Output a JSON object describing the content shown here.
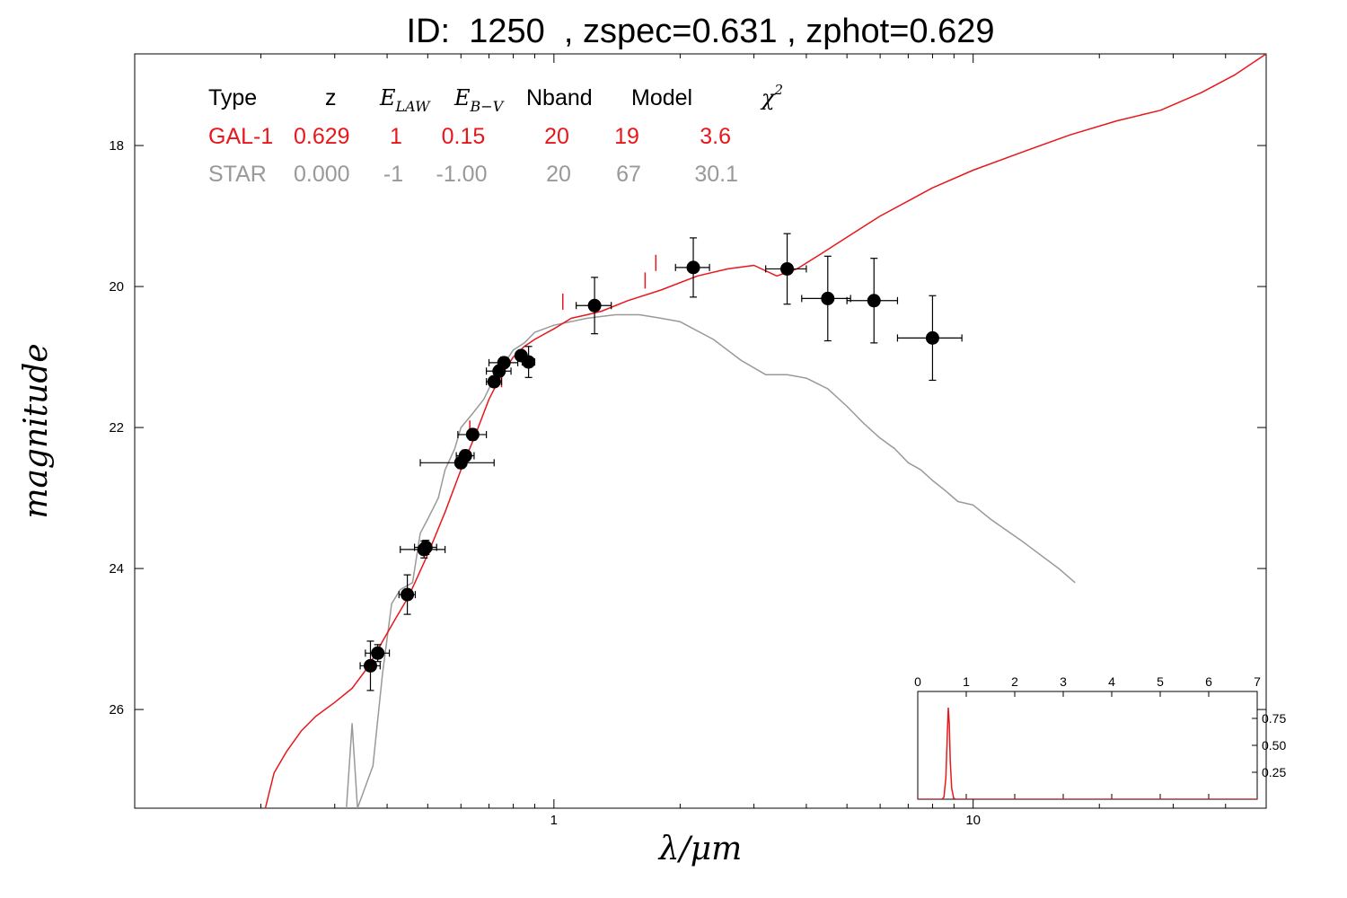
{
  "title": {
    "id_label": "ID:",
    "id_value": "1250",
    "zspec": "zspec=0.631",
    "zphot": "zphot=0.629"
  },
  "fit_table": {
    "headers": {
      "type": "Type",
      "z": "z",
      "elaw_base": "E",
      "elaw_sub": "LAW",
      "ebv_base": "E",
      "ebv_sub": "B−V",
      "nband": "Nband",
      "model": "Model",
      "chi2_base": "χ",
      "chi2_sup": "2"
    },
    "rows": [
      {
        "type": "GAL-1",
        "z": "0.629",
        "elaw": "1",
        "ebv": "0.15",
        "nband": "20",
        "model": "19",
        "chi2": "3.6",
        "color": "#e8171c"
      },
      {
        "type": "STAR",
        "z": "0.000",
        "elaw": "-1",
        "ebv": "-1.00",
        "nband": "20",
        "model": "67",
        "chi2": "30.1",
        "color": "#999999"
      }
    ]
  },
  "chart_data": {
    "type": "scatter",
    "xlabel": "λ/μm",
    "ylabel": "magnitude",
    "x_scale": "log",
    "xlim": [
      0.1,
      50
    ],
    "ylim": [
      27.4,
      16.7
    ],
    "xticks": [
      {
        "value": 1,
        "label": "1"
      },
      {
        "value": 10,
        "label": "10"
      }
    ],
    "yticks": [
      {
        "value": 18,
        "label": "18"
      },
      {
        "value": 20,
        "label": "20"
      },
      {
        "value": 22,
        "label": "22"
      },
      {
        "value": 24,
        "label": "24"
      },
      {
        "value": 26,
        "label": "26"
      }
    ],
    "observations": [
      {
        "x": 0.365,
        "y": 25.38,
        "xerr": 0.02,
        "yerr": 0.35
      },
      {
        "x": 0.38,
        "y": 25.2,
        "xerr": 0.025,
        "yerr": 0.12
      },
      {
        "x": 0.447,
        "y": 24.37,
        "xerr": 0.02,
        "yerr": 0.28
      },
      {
        "x": 0.49,
        "y": 23.73,
        "xerr": 0.06,
        "yerr": 0.12
      },
      {
        "x": 0.495,
        "y": 23.7,
        "xerr": 0.03,
        "yerr": 0.1
      },
      {
        "x": 0.6,
        "y": 22.5,
        "xerr": 0.12,
        "yerr": 0.08
      },
      {
        "x": 0.615,
        "y": 22.4,
        "xerr": 0.03,
        "yerr": 0.08
      },
      {
        "x": 0.64,
        "y": 22.1,
        "xerr": 0.05,
        "yerr": 0.08
      },
      {
        "x": 0.72,
        "y": 21.35,
        "xerr": 0.03,
        "yerr": 0.07
      },
      {
        "x": 0.74,
        "y": 21.2,
        "xerr": 0.05,
        "yerr": 0.08
      },
      {
        "x": 0.76,
        "y": 21.08,
        "xerr": 0.06,
        "yerr": 0.08
      },
      {
        "x": 0.835,
        "y": 20.98,
        "xerr": 0.02,
        "yerr": 0.06
      },
      {
        "x": 0.87,
        "y": 21.07,
        "xerr": 0.03,
        "yerr": 0.22
      },
      {
        "x": 1.25,
        "y": 20.27,
        "xerr": 0.12,
        "yerr": 0.4
      },
      {
        "x": 2.15,
        "y": 19.73,
        "xerr": 0.2,
        "yerr": 0.42
      },
      {
        "x": 3.6,
        "y": 19.75,
        "xerr": 0.4,
        "yerr": 0.5
      },
      {
        "x": 4.5,
        "y": 20.17,
        "xerr": 0.6,
        "yerr": 0.6
      },
      {
        "x": 5.8,
        "y": 20.2,
        "xerr": 0.8,
        "yerr": 0.6
      },
      {
        "x": 8.0,
        "y": 20.73,
        "xerr": 1.4,
        "yerr": 0.6
      }
    ],
    "series": [
      {
        "name": "GAL-1",
        "color": "#e8171c",
        "points": [
          [
            0.205,
            27.4
          ],
          [
            0.215,
            26.9
          ],
          [
            0.23,
            26.6
          ],
          [
            0.25,
            26.3
          ],
          [
            0.27,
            26.1
          ],
          [
            0.3,
            25.9
          ],
          [
            0.33,
            25.7
          ],
          [
            0.36,
            25.4
          ],
          [
            0.38,
            25.15
          ],
          [
            0.42,
            24.7
          ],
          [
            0.45,
            24.4
          ],
          [
            0.5,
            23.8
          ],
          [
            0.55,
            23.2
          ],
          [
            0.6,
            22.6
          ],
          [
            0.65,
            22.1
          ],
          [
            0.7,
            21.6
          ],
          [
            0.75,
            21.25
          ],
          [
            0.8,
            21.0
          ],
          [
            0.85,
            20.85
          ],
          [
            0.9,
            20.75
          ],
          [
            1.0,
            20.6
          ],
          [
            1.1,
            20.45
          ],
          [
            1.2,
            20.4
          ],
          [
            1.3,
            20.35
          ],
          [
            1.5,
            20.2
          ],
          [
            1.8,
            20.05
          ],
          [
            2.2,
            19.85
          ],
          [
            2.6,
            19.75
          ],
          [
            3.0,
            19.7
          ],
          [
            3.4,
            19.85
          ],
          [
            3.8,
            19.75
          ],
          [
            4.3,
            19.55
          ],
          [
            5.0,
            19.3
          ],
          [
            6.0,
            19.0
          ],
          [
            8.0,
            18.6
          ],
          [
            10.0,
            18.35
          ],
          [
            13.0,
            18.1
          ],
          [
            17.0,
            17.85
          ],
          [
            22.0,
            17.65
          ],
          [
            28.0,
            17.5
          ],
          [
            35.0,
            17.25
          ],
          [
            42.0,
            17.0
          ],
          [
            50.0,
            16.7
          ]
        ],
        "spikes": [
          [
            0.63,
            21.9
          ],
          [
            0.75,
            21.2
          ],
          [
            1.05,
            20.1
          ],
          [
            1.65,
            19.8
          ],
          [
            1.75,
            19.55
          ]
        ]
      },
      {
        "name": "STAR",
        "color": "#999999",
        "points": [
          [
            0.32,
            27.4
          ],
          [
            0.33,
            26.2
          ],
          [
            0.34,
            27.4
          ],
          [
            0.37,
            26.8
          ],
          [
            0.39,
            25.5
          ],
          [
            0.41,
            24.5
          ],
          [
            0.43,
            24.3
          ],
          [
            0.46,
            24.2
          ],
          [
            0.48,
            23.5
          ],
          [
            0.5,
            23.3
          ],
          [
            0.53,
            23.0
          ],
          [
            0.55,
            22.6
          ],
          [
            0.58,
            22.3
          ],
          [
            0.6,
            22.0
          ],
          [
            0.64,
            21.8
          ],
          [
            0.68,
            21.6
          ],
          [
            0.72,
            21.3
          ],
          [
            0.76,
            21.1
          ],
          [
            0.8,
            20.9
          ],
          [
            0.85,
            20.8
          ],
          [
            0.9,
            20.65
          ],
          [
            1.0,
            20.55
          ],
          [
            1.2,
            20.45
          ],
          [
            1.4,
            20.4
          ],
          [
            1.6,
            20.4
          ],
          [
            1.8,
            20.45
          ],
          [
            2.0,
            20.5
          ],
          [
            2.4,
            20.75
          ],
          [
            2.8,
            21.05
          ],
          [
            3.2,
            21.25
          ],
          [
            3.6,
            21.25
          ],
          [
            4.0,
            21.3
          ],
          [
            4.5,
            21.45
          ],
          [
            5.0,
            21.7
          ],
          [
            5.5,
            21.95
          ],
          [
            6.0,
            22.15
          ],
          [
            6.5,
            22.3
          ],
          [
            7.0,
            22.5
          ],
          [
            7.5,
            22.6
          ],
          [
            8.0,
            22.75
          ],
          [
            8.6,
            22.9
          ],
          [
            9.2,
            23.05
          ],
          [
            10.0,
            23.1
          ],
          [
            11.0,
            23.3
          ],
          [
            13.0,
            23.6
          ],
          [
            16.0,
            24.0
          ],
          [
            17.5,
            24.2
          ]
        ]
      }
    ],
    "inset": {
      "type": "line",
      "xlim": [
        0,
        7
      ],
      "xticks": [
        0,
        1,
        2,
        3,
        4,
        5,
        6,
        7
      ],
      "ylim": [
        0,
        1.0
      ],
      "yticks": [
        0.25,
        0.5,
        0.75
      ],
      "ytick_labels": [
        "0.25",
        "0.50",
        "0.75"
      ],
      "color": "#e8171c",
      "pdf": [
        [
          0.0,
          0.0
        ],
        [
          0.5,
          0.0
        ],
        [
          0.54,
          0.02
        ],
        [
          0.58,
          0.2
        ],
        [
          0.61,
          0.6
        ],
        [
          0.63,
          0.85
        ],
        [
          0.65,
          0.7
        ],
        [
          0.67,
          0.35
        ],
        [
          0.7,
          0.1
        ],
        [
          0.74,
          0.01
        ],
        [
          0.78,
          0.0
        ],
        [
          7.0,
          0.0
        ]
      ]
    }
  }
}
